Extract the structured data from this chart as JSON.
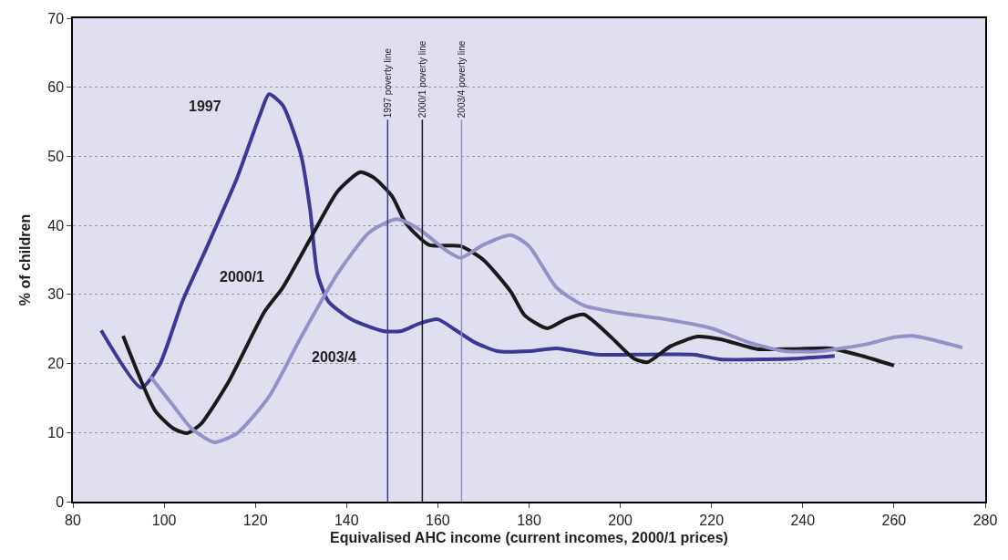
{
  "chart_data": {
    "type": "line",
    "xlabel": "Equivalised AHC income (current incomes, 2000/1 prices)",
    "ylabel": "% of children",
    "xlim": [
      80,
      280
    ],
    "xticks": [
      80,
      100,
      120,
      140,
      160,
      180,
      200,
      220,
      240,
      260,
      280
    ],
    "ylim": [
      0,
      70
    ],
    "yticks": [
      0,
      10,
      20,
      30,
      40,
      50,
      60,
      70
    ],
    "grid": "y",
    "legend": false,
    "marker": "none",
    "line_style": "solid",
    "series": [
      {
        "name": "1997",
        "color": "#3a3a96",
        "x": [
          86.2,
          95,
          99,
          104,
          109,
          116,
          121,
          123,
          126,
          130,
          132,
          133.6,
          136,
          141,
          148,
          152,
          156,
          160,
          164,
          168,
          173,
          180,
          186,
          195,
          206,
          216,
          222,
          232,
          238,
          247
        ],
        "values": [
          24.8,
          16.5,
          19.8,
          29,
          36.3,
          46.9,
          56,
          59,
          57.4,
          50.2,
          42.3,
          33,
          29,
          26.4,
          24.7,
          24.7,
          25.8,
          26.4,
          24.8,
          23.1,
          21.8,
          21.8,
          22.2,
          21.3,
          21.3,
          21.3,
          20.6,
          20.6,
          20.7,
          21.1
        ]
      },
      {
        "name": "2000/1",
        "color": "#1a1a1a",
        "x": [
          91,
          98,
          102,
          105,
          108,
          114,
          122,
          126,
          132,
          138,
          143,
          146,
          150,
          153,
          158,
          165,
          170,
          176,
          179,
          184,
          188,
          192,
          198,
          203,
          206,
          211,
          217,
          222,
          230,
          238,
          246,
          253,
          260
        ],
        "values": [
          24,
          13.2,
          10.6,
          9.9,
          11.2,
          17.2,
          27.5,
          31,
          38,
          44.9,
          47.7,
          46.9,
          44.2,
          40.3,
          37.2,
          37,
          35,
          30.4,
          27,
          25.1,
          26.4,
          27.1,
          23.8,
          20.7,
          20.2,
          22.5,
          23.9,
          23.5,
          22.1,
          22.1,
          22.2,
          21.1,
          19.7
        ]
      },
      {
        "name": "2003/4",
        "color": "#9490c8",
        "x": [
          97,
          102,
          106,
          111,
          116,
          123,
          130,
          138,
          145,
          151,
          156,
          162,
          165,
          170,
          176,
          180,
          186,
          192,
          200,
          210,
          220,
          228,
          236,
          244,
          254,
          260,
          264,
          268,
          275
        ],
        "values": [
          18.1,
          13.9,
          10.6,
          8.6,
          9.9,
          15.2,
          23.8,
          33,
          39,
          40.9,
          39.4,
          36.3,
          35.3,
          37.2,
          38.6,
          37,
          31,
          28.4,
          27.3,
          26.4,
          25.1,
          23.1,
          21.8,
          21.8,
          22.8,
          23.8,
          24,
          23.5,
          22.3
        ]
      }
    ],
    "ref_lines": [
      {
        "axis": "x",
        "value": 149,
        "label": "1997 poverty line",
        "color": "#3a3a96"
      },
      {
        "axis": "x",
        "value": 156.6,
        "label": "2000/1 poverty line",
        "color": "#1a1a1a"
      },
      {
        "axis": "x",
        "value": 165.2,
        "label": "2003/4 poverty line",
        "color": "#9490c8"
      }
    ]
  }
}
